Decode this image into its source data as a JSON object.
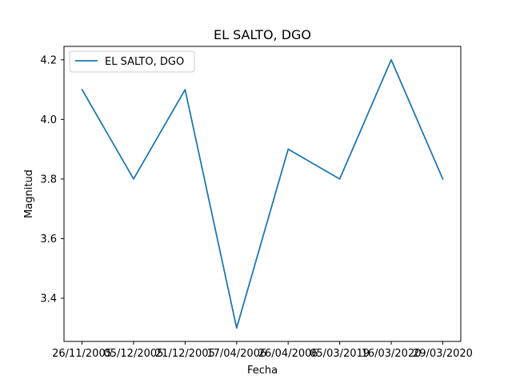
{
  "chart_data": {
    "type": "line",
    "title": "EL SALTO, DGO",
    "xlabel": "Fecha",
    "ylabel": "Magnitud",
    "categories": [
      "26/11/2005",
      "05/12/2005",
      "21/12/2005",
      "17/04/2006",
      "26/04/2006",
      "05/03/2019",
      "16/03/2020",
      "29/03/2020"
    ],
    "series": [
      {
        "name": "EL SALTO, DGO",
        "color": "#1f77b4",
        "values": [
          4.1,
          3.8,
          4.1,
          3.3,
          3.9,
          3.8,
          4.2,
          3.8
        ]
      }
    ],
    "ylim": [
      3.255,
      4.245
    ],
    "yticks": [
      3.4,
      3.6,
      3.8,
      4.0,
      4.2
    ],
    "ytick_labels": [
      "3.4",
      "3.6",
      "3.8",
      "4.0",
      "4.2"
    ],
    "grid": false,
    "legend_position": "top-left"
  }
}
